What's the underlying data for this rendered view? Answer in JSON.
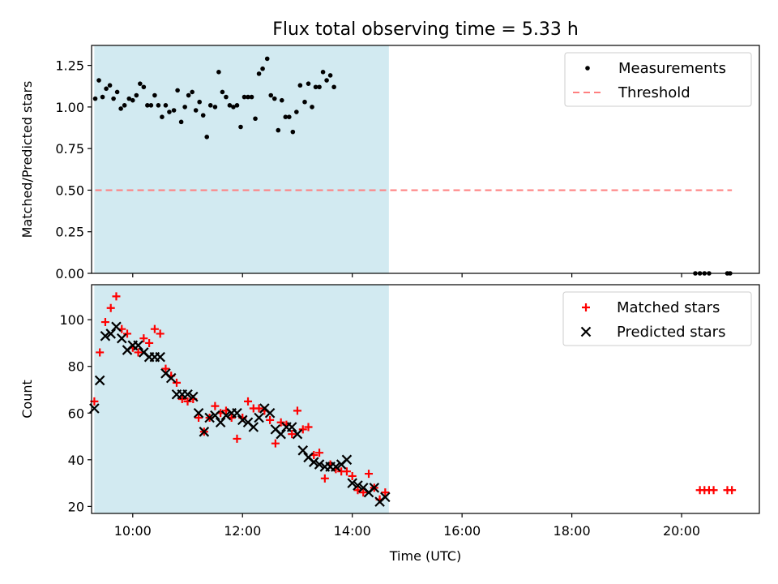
{
  "title": "Flux total observing time = 5.33 h",
  "chart_data": [
    {
      "type": "scatter",
      "ylabel": "Matched/Predicted stars",
      "xlabel": "",
      "xlim": [
        "09:15",
        "21:25"
      ],
      "ylim": [
        0,
        1.37
      ],
      "yticks": [
        "0.00",
        "0.25",
        "0.50",
        "0.75",
        "1.00",
        "1.25"
      ],
      "shaded_span": [
        "09:18",
        "14:40"
      ],
      "shade_color": "#add8e6",
      "legend_position": "upper-right",
      "series": [
        {
          "name": "Measurements",
          "marker": "dot",
          "color": "#000000",
          "points": [
            [
              "09:19",
              1.05
            ],
            [
              "09:23",
              1.16
            ],
            [
              "09:27",
              1.06
            ],
            [
              "09:31",
              1.11
            ],
            [
              "09:35",
              1.13
            ],
            [
              "09:39",
              1.05
            ],
            [
              "09:43",
              1.09
            ],
            [
              "09:47",
              0.99
            ],
            [
              "09:51",
              1.01
            ],
            [
              "09:56",
              1.05
            ],
            [
              "10:00",
              1.04
            ],
            [
              "10:04",
              1.07
            ],
            [
              "10:08",
              1.14
            ],
            [
              "10:12",
              1.12
            ],
            [
              "10:16",
              1.01
            ],
            [
              "10:20",
              1.01
            ],
            [
              "10:24",
              1.07
            ],
            [
              "10:28",
              1.01
            ],
            [
              "10:32",
              0.94
            ],
            [
              "10:36",
              1.01
            ],
            [
              "10:40",
              0.97
            ],
            [
              "10:45",
              0.98
            ],
            [
              "10:49",
              1.1
            ],
            [
              "10:53",
              0.91
            ],
            [
              "10:57",
              1.0
            ],
            [
              "11:01",
              1.07
            ],
            [
              "11:05",
              1.09
            ],
            [
              "11:09",
              0.98
            ],
            [
              "11:13",
              1.03
            ],
            [
              "11:17",
              0.95
            ],
            [
              "11:21",
              0.82
            ],
            [
              "11:25",
              1.01
            ],
            [
              "11:30",
              1.0
            ],
            [
              "11:34",
              1.21
            ],
            [
              "11:38",
              1.09
            ],
            [
              "11:42",
              1.06
            ],
            [
              "11:46",
              1.01
            ],
            [
              "11:50",
              1.0
            ],
            [
              "11:54",
              1.01
            ],
            [
              "11:58",
              0.88
            ],
            [
              "12:02",
              1.06
            ],
            [
              "12:06",
              1.06
            ],
            [
              "12:10",
              1.06
            ],
            [
              "12:14",
              0.93
            ],
            [
              "12:18",
              1.2
            ],
            [
              "12:22",
              1.23
            ],
            [
              "12:27",
              1.29
            ],
            [
              "12:31",
              1.07
            ],
            [
              "12:35",
              1.05
            ],
            [
              "12:39",
              0.86
            ],
            [
              "12:43",
              1.04
            ],
            [
              "12:47",
              0.94
            ],
            [
              "12:51",
              0.94
            ],
            [
              "12:55",
              0.85
            ],
            [
              "12:59",
              0.97
            ],
            [
              "13:03",
              1.13
            ],
            [
              "13:08",
              1.03
            ],
            [
              "13:12",
              1.14
            ],
            [
              "13:16",
              1.0
            ],
            [
              "13:20",
              1.12
            ],
            [
              "13:24",
              1.12
            ],
            [
              "13:28",
              1.21
            ],
            [
              "13:32",
              1.16
            ],
            [
              "13:36",
              1.19
            ],
            [
              "13:40",
              1.12
            ],
            [
              "20:15",
              0.0
            ],
            [
              "20:20",
              0.0
            ],
            [
              "20:25",
              0.0
            ],
            [
              "20:30",
              0.0
            ],
            [
              "20:50",
              0.0
            ],
            [
              "20:53",
              0.0
            ]
          ]
        },
        {
          "name": "Threshold",
          "style": "dashed-line",
          "color": "#ff7f7f",
          "points": [
            [
              "09:19",
              0.5
            ],
            [
              "20:55",
              0.5
            ]
          ]
        }
      ]
    },
    {
      "type": "scatter",
      "ylabel": "Count",
      "xlabel": "Time (UTC)",
      "xlim": [
        "09:15",
        "21:25"
      ],
      "ylim": [
        17,
        115
      ],
      "yticks": [
        "20",
        "40",
        "60",
        "80",
        "100"
      ],
      "xticks": [
        "10:00",
        "12:00",
        "14:00",
        "16:00",
        "18:00",
        "20:00"
      ],
      "shaded_span": [
        "09:18",
        "14:40"
      ],
      "shade_color": "#add8e6",
      "legend_position": "upper-right",
      "series": [
        {
          "name": "Matched stars",
          "marker": "plus",
          "color": "#ff0000",
          "points": [
            [
              "09:18",
              65
            ],
            [
              "09:24",
              86
            ],
            [
              "09:30",
              99
            ],
            [
              "09:36",
              105
            ],
            [
              "09:42",
              110
            ],
            [
              "09:48",
              96
            ],
            [
              "09:54",
              94
            ],
            [
              "10:00",
              88
            ],
            [
              "10:06",
              86
            ],
            [
              "10:12",
              92
            ],
            [
              "10:18",
              90
            ],
            [
              "10:24",
              96
            ],
            [
              "10:30",
              94
            ],
            [
              "10:36",
              79
            ],
            [
              "10:42",
              76
            ],
            [
              "10:48",
              73
            ],
            [
              "10:54",
              66
            ],
            [
              "11:00",
              65
            ],
            [
              "11:06",
              66
            ],
            [
              "11:12",
              58
            ],
            [
              "11:18",
              52
            ],
            [
              "11:24",
              58
            ],
            [
              "11:30",
              63
            ],
            [
              "11:36",
              60
            ],
            [
              "11:42",
              61
            ],
            [
              "11:48",
              58
            ],
            [
              "11:54",
              49
            ],
            [
              "12:00",
              58
            ],
            [
              "12:06",
              65
            ],
            [
              "12:12",
              62
            ],
            [
              "12:18",
              62
            ],
            [
              "12:24",
              61
            ],
            [
              "12:30",
              57
            ],
            [
              "12:36",
              47
            ],
            [
              "12:42",
              56
            ],
            [
              "12:48",
              55
            ],
            [
              "12:54",
              51
            ],
            [
              "13:00",
              61
            ],
            [
              "13:06",
              53
            ],
            [
              "13:12",
              54
            ],
            [
              "13:18",
              42
            ],
            [
              "13:24",
              43
            ],
            [
              "13:30",
              32
            ],
            [
              "13:36",
              38
            ],
            [
              "13:42",
              36
            ],
            [
              "13:48",
              35
            ],
            [
              "13:54",
              35
            ],
            [
              "14:00",
              33
            ],
            [
              "14:06",
              27
            ],
            [
              "14:12",
              26
            ],
            [
              "14:18",
              34
            ],
            [
              "14:24",
              28
            ],
            [
              "14:30",
              23
            ],
            [
              "14:36",
              26
            ],
            [
              "20:20",
              27
            ],
            [
              "20:25",
              27
            ],
            [
              "20:30",
              27
            ],
            [
              "20:35",
              27
            ],
            [
              "20:50",
              27
            ],
            [
              "20:55",
              27
            ]
          ]
        },
        {
          "name": "Predicted stars",
          "marker": "x",
          "color": "#000000",
          "points": [
            [
              "09:18",
              62
            ],
            [
              "09:24",
              74
            ],
            [
              "09:30",
              93
            ],
            [
              "09:36",
              94
            ],
            [
              "09:42",
              97
            ],
            [
              "09:48",
              92
            ],
            [
              "09:54",
              87
            ],
            [
              "10:00",
              89
            ],
            [
              "10:06",
              89
            ],
            [
              "10:12",
              86
            ],
            [
              "10:18",
              84
            ],
            [
              "10:24",
              84
            ],
            [
              "10:30",
              84
            ],
            [
              "10:36",
              77
            ],
            [
              "10:42",
              75
            ],
            [
              "10:48",
              68
            ],
            [
              "10:54",
              68
            ],
            [
              "11:00",
              68
            ],
            [
              "11:06",
              67
            ],
            [
              "11:12",
              60
            ],
            [
              "11:18",
              52
            ],
            [
              "11:24",
              58
            ],
            [
              "11:30",
              59
            ],
            [
              "11:36",
              56
            ],
            [
              "11:42",
              59
            ],
            [
              "11:48",
              60
            ],
            [
              "11:54",
              60
            ],
            [
              "12:00",
              57
            ],
            [
              "12:06",
              56
            ],
            [
              "12:12",
              54
            ],
            [
              "12:18",
              58
            ],
            [
              "12:24",
              62
            ],
            [
              "12:30",
              60
            ],
            [
              "12:36",
              53
            ],
            [
              "12:42",
              51
            ],
            [
              "12:48",
              54
            ],
            [
              "12:54",
              54
            ],
            [
              "13:00",
              51
            ],
            [
              "13:06",
              44
            ],
            [
              "13:12",
              41
            ],
            [
              "13:18",
              39
            ],
            [
              "13:24",
              38
            ],
            [
              "13:30",
              37
            ],
            [
              "13:36",
              37
            ],
            [
              "13:42",
              37
            ],
            [
              "13:48",
              38
            ],
            [
              "13:54",
              40
            ],
            [
              "14:00",
              30
            ],
            [
              "14:06",
              29
            ],
            [
              "14:12",
              28
            ],
            [
              "14:18",
              26
            ],
            [
              "14:24",
              28
            ],
            [
              "14:30",
              22
            ],
            [
              "14:36",
              24
            ]
          ]
        }
      ]
    }
  ]
}
